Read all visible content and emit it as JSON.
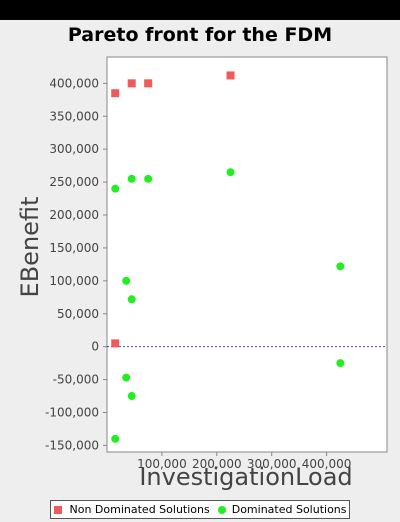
{
  "chart_data": {
    "type": "scatter",
    "title": "Pareto front for the FDM",
    "xlabel": "InvestigationLoad",
    "ylabel": "EBenefit",
    "xlim": [
      0,
      510000
    ],
    "ylim": [
      -160000,
      440000
    ],
    "x_ticks": [
      100000,
      200000,
      300000,
      400000
    ],
    "x_tick_labels": [
      "100,000",
      "200,000",
      "300,000",
      "400,000"
    ],
    "y_ticks": [
      400000,
      350000,
      300000,
      250000,
      200000,
      150000,
      100000,
      50000,
      0,
      -50000,
      -100000,
      -150000
    ],
    "y_tick_labels": [
      "400,000",
      "350,000",
      "300,000",
      "250,000",
      "200,000",
      "150,000",
      "100,000",
      "50,000",
      "0",
      "-50,000",
      "-100,000",
      "-150,000"
    ],
    "grid": false,
    "reference_line": {
      "y": 0
    },
    "legend": "bottom",
    "series": [
      {
        "name": "Non Dominated Solutions",
        "marker": "square",
        "color": "#f05a5a",
        "points": [
          [
            15000,
            385000
          ],
          [
            45000,
            400000
          ],
          [
            75000,
            400000
          ],
          [
            225000,
            412000
          ],
          [
            15000,
            5000
          ]
        ]
      },
      {
        "name": "Dominated Solutions",
        "marker": "circle",
        "color": "#22ee22",
        "points": [
          [
            15000,
            240000
          ],
          [
            45000,
            255000
          ],
          [
            75000,
            255000
          ],
          [
            225000,
            265000
          ],
          [
            425000,
            122000
          ],
          [
            35000,
            100000
          ],
          [
            45000,
            72000
          ],
          [
            425000,
            -25000
          ],
          [
            35000,
            -47000
          ],
          [
            45000,
            -75000
          ],
          [
            15000,
            -140000
          ]
        ]
      }
    ]
  }
}
